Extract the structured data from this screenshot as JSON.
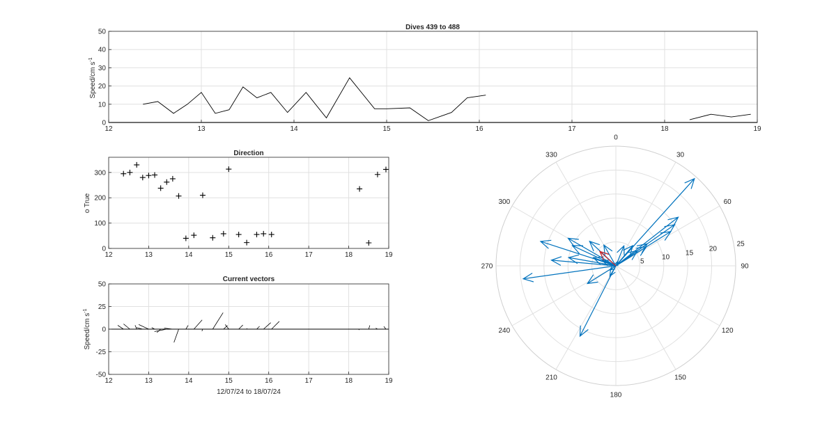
{
  "colors": {
    "vector": "#0072bd",
    "latest_vector": "#d62728",
    "grid": "#e0e0e0",
    "axis": "#262626"
  },
  "chart_data": [
    {
      "id": "speed",
      "type": "line",
      "title": "Dives 439 to 488",
      "xlabel": "",
      "ylabel": "Speed/cm s",
      "ylabel_exp": "-1",
      "xlim": [
        12,
        19
      ],
      "ylim": [
        0,
        50
      ],
      "xticks": [
        12,
        13,
        14,
        15,
        16,
        17,
        18,
        19
      ],
      "yticks": [
        0,
        10,
        20,
        30,
        40,
        50
      ],
      "grid": true,
      "segments": [
        [
          [
            12.37,
            10
          ],
          [
            12.53,
            11.5
          ],
          [
            12.7,
            5
          ],
          [
            12.85,
            10
          ],
          [
            13.0,
            16.5
          ],
          [
            13.15,
            5
          ],
          [
            13.3,
            7
          ],
          [
            13.45,
            19.5
          ],
          [
            13.6,
            13.5
          ],
          [
            13.75,
            16.5
          ],
          [
            13.93,
            5.5
          ],
          [
            14.13,
            16.5
          ],
          [
            14.35,
            2.5
          ],
          [
            14.6,
            24.5
          ],
          [
            14.87,
            7.5
          ],
          [
            15.0,
            7.5
          ],
          [
            15.25,
            8
          ],
          [
            15.45,
            1
          ],
          [
            15.7,
            5.5
          ],
          [
            15.87,
            13.5
          ],
          [
            16.07,
            15
          ]
        ],
        [
          [
            18.27,
            1.5
          ],
          [
            18.5,
            4.5
          ],
          [
            18.72,
            3
          ],
          [
            18.93,
            4.5
          ]
        ]
      ]
    },
    {
      "id": "direction",
      "type": "scatter",
      "title": "Direction",
      "xlabel": "",
      "ylabel": "o True",
      "xlim": [
        12,
        19
      ],
      "ylim": [
        0,
        360
      ],
      "xticks": [
        12,
        13,
        14,
        15,
        16,
        17,
        18,
        19
      ],
      "yticks": [
        0,
        100,
        200,
        300
      ],
      "grid": true,
      "points": [
        [
          12.37,
          295
        ],
        [
          12.53,
          300
        ],
        [
          12.7,
          330
        ],
        [
          12.85,
          280
        ],
        [
          13.0,
          288
        ],
        [
          13.15,
          290
        ],
        [
          13.3,
          238
        ],
        [
          13.45,
          262
        ],
        [
          13.6,
          275
        ],
        [
          13.75,
          207
        ],
        [
          13.93,
          40
        ],
        [
          14.13,
          52
        ],
        [
          14.35,
          210
        ],
        [
          14.6,
          42
        ],
        [
          14.87,
          58
        ],
        [
          15.0,
          313
        ],
        [
          15.25,
          55
        ],
        [
          15.45,
          23
        ],
        [
          15.7,
          55
        ],
        [
          15.87,
          58
        ],
        [
          16.07,
          55
        ],
        [
          18.27,
          235
        ],
        [
          18.5,
          22
        ],
        [
          18.72,
          292
        ],
        [
          18.93,
          312
        ]
      ]
    },
    {
      "id": "vectors",
      "type": "line",
      "title": "Current vectors",
      "xlabel": "12/07/24 to 18/07/24",
      "ylabel": "Speed/cm s",
      "ylabel_exp": "-1",
      "xlim": [
        12,
        19
      ],
      "ylim": [
        -50,
        50
      ],
      "xticks": [
        12,
        13,
        14,
        15,
        16,
        17,
        18,
        19
      ],
      "yticks": [
        -50,
        -25,
        0,
        25,
        50
      ],
      "grid": true
    },
    {
      "id": "polar",
      "type": "scatter",
      "title": "",
      "theta_ticks": [
        "0",
        "30",
        "60",
        "90",
        "120",
        "150",
        "180",
        "210",
        "240",
        "270",
        "300",
        "330"
      ],
      "r_ticks": [
        "5",
        "10",
        "15",
        "20",
        "25"
      ],
      "rlim": [
        0,
        25
      ],
      "grid": true
    }
  ]
}
